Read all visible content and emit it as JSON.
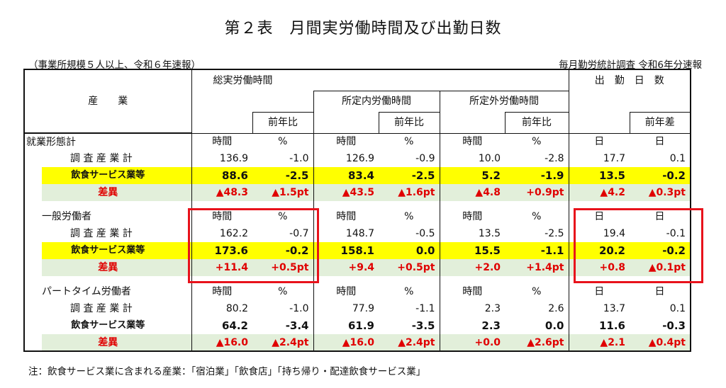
{
  "title": "第２表　月間実労働時間及び出勤日数",
  "subtitle_left": "（事業所規模５人以上、令和６年速報）",
  "subtitle_right": "毎月勤労統計調査 令和6年分速報",
  "note": "注：飲食サービス業に含まれる産業：「宿泊業」「飲食店」「持ち帰り・配達飲食サービス業」",
  "headers": {
    "industry": "産　　業",
    "total_hours": "総実労働時間",
    "scheduled": "所定内労働時間",
    "overtime": "所定外労働時間",
    "days": "出　勤　日　数",
    "yoy_ratio": "前年比",
    "yoy_diff": "前年差"
  },
  "groups": [
    {
      "name": "就業形態計",
      "units": [
        "時間",
        "%",
        "時間",
        "%",
        "時間",
        "%",
        "日",
        "日"
      ],
      "rows": [
        {
          "label": "調 査 産 業 計",
          "type": "normal",
          "values": [
            "136.9",
            "-1.0",
            "126.9",
            "-0.9",
            "10.0",
            "-2.8",
            "17.7",
            "0.1"
          ]
        },
        {
          "label": "飲食サービス業等",
          "type": "yellow",
          "values": [
            "88.6",
            "-2.5",
            "83.4",
            "-2.5",
            "5.2",
            "-1.9",
            "13.5",
            "-0.2"
          ]
        },
        {
          "label": "差異",
          "type": "diff",
          "values": [
            "▲48.3",
            "▲1.5pt",
            "▲43.5",
            "▲1.6pt",
            "▲4.8",
            "+0.9pt",
            "▲4.2",
            "▲0.3pt"
          ]
        }
      ]
    },
    {
      "name": "一般労働者",
      "units": [
        "時間",
        "%",
        "時間",
        "%",
        "時間",
        "%",
        "日",
        "日"
      ],
      "rows": [
        {
          "label": "調 査 産 業 計",
          "type": "normal",
          "values": [
            "162.2",
            "-0.7",
            "148.7",
            "-0.5",
            "13.5",
            "-2.5",
            "19.4",
            "-0.1"
          ]
        },
        {
          "label": "飲食サービス業等",
          "type": "yellow",
          "values": [
            "173.6",
            "-0.2",
            "158.1",
            "0.0",
            "15.5",
            "-1.1",
            "20.2",
            "-0.2"
          ]
        },
        {
          "label": "差異",
          "type": "diff",
          "values": [
            "+11.4",
            "+0.5pt",
            "+9.4",
            "+0.5pt",
            "+2.0",
            "+1.4pt",
            "+0.8",
            "▲0.1pt"
          ]
        }
      ]
    },
    {
      "name": "パートタイム労働者",
      "units": [
        "時間",
        "%",
        "時間",
        "%",
        "時間",
        "%",
        "日",
        "日"
      ],
      "rows": [
        {
          "label": "調 査 産 業 計",
          "type": "normal",
          "values": [
            "80.2",
            "-1.0",
            "77.9",
            "-1.1",
            "2.3",
            "2.6",
            "13.7",
            "0.1"
          ]
        },
        {
          "label": "飲食サービス業等",
          "type": "plainbold",
          "values": [
            "64.2",
            "-3.4",
            "61.9",
            "-3.5",
            "2.3",
            "0.0",
            "11.6",
            "-0.3"
          ]
        },
        {
          "label": "差異",
          "type": "diff",
          "values": [
            "▲16.0",
            "▲2.4pt",
            "▲16.0",
            "▲2.4pt",
            "+0.0",
            "▲2.6pt",
            "▲2.1",
            "▲0.4pt"
          ]
        }
      ]
    }
  ]
}
